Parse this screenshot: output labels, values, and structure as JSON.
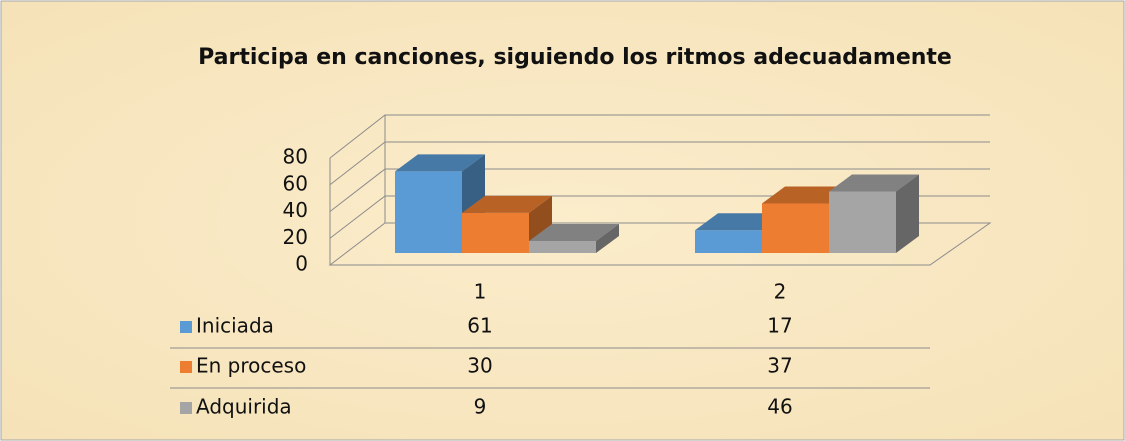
{
  "chart_data": {
    "type": "bar3d",
    "title": "Participa en canciones, siguiendo los  ritmos adecuadamente",
    "categories": [
      "1",
      "2"
    ],
    "series": [
      {
        "name": "Iniciada",
        "color": "#5b9bd5",
        "values": [
          61,
          17
        ]
      },
      {
        "name": "En proceso",
        "color": "#ed7d31",
        "values": [
          30,
          37
        ]
      },
      {
        "name": "Adquirida",
        "color": "#a5a5a5",
        "values": [
          9,
          46
        ]
      }
    ],
    "ylim": [
      0,
      80
    ],
    "yticks": [
      0,
      20,
      40,
      60,
      80
    ],
    "grid": true,
    "data_table": true
  }
}
